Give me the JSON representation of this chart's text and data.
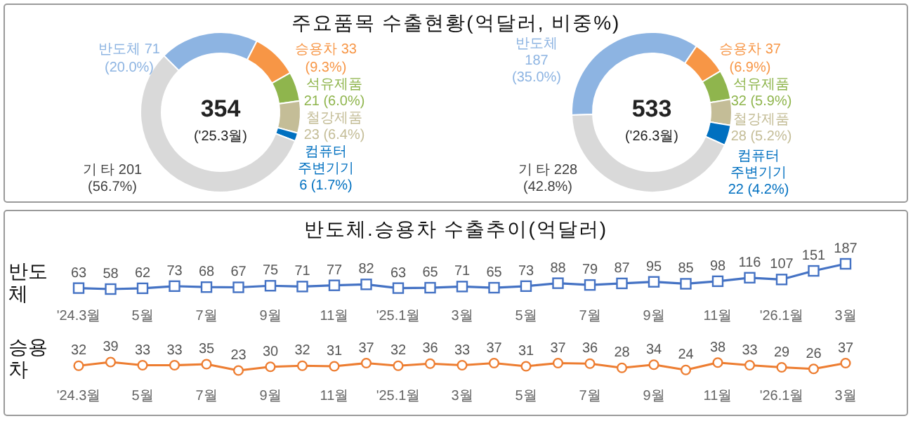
{
  "chart_data": [
    {
      "type": "donut",
      "title": "주요품목 수출현황(억달러, 비중%)",
      "categories": [
        "반도체",
        "승용차",
        "석유제품",
        "철강제품",
        "컴퓨터 주변기기",
        "기 타"
      ],
      "values": [
        71,
        33,
        21,
        23,
        6,
        201
      ],
      "value_labels": [
        "71 (20.0%)",
        "33 (9.3%)",
        "21 (6.0%)",
        "23 (6.4%)",
        "6 (1.7%)",
        "201 (56.7%)"
      ],
      "colors": [
        "#8db4e2",
        "#f79646",
        "#8fb54d",
        "#c4bd97",
        "#0070c0",
        "#d9d9d9"
      ],
      "annotations": [
        "354",
        "('25.3월)"
      ]
    },
    {
      "type": "donut",
      "categories": [
        "반도체",
        "승용차",
        "석유제품",
        "철강제품",
        "컴퓨터 주변기기",
        "기 타"
      ],
      "values": [
        187,
        37,
        32,
        28,
        22,
        228
      ],
      "value_labels": [
        "187 (35.0%)",
        "37 (6.9%)",
        "32 (5.9%)",
        "28 (5.2%)",
        "22 (4.2%)",
        "228 (42.8%)"
      ],
      "colors": [
        "#8db4e2",
        "#f79646",
        "#8fb54d",
        "#c4bd97",
        "#0070c0",
        "#d9d9d9"
      ],
      "annotations": [
        "533",
        "('26.3월)"
      ]
    },
    {
      "type": "line",
      "title": "반도체.승용차 수출추이(억달러)",
      "ylabel": "반도체",
      "marker": "square",
      "data_labels": true,
      "categories": [
        "'24.3월",
        null,
        "5월",
        null,
        "7월",
        null,
        "9월",
        null,
        "11월",
        null,
        "'25.1월",
        null,
        "3월",
        null,
        "5월",
        null,
        "7월",
        null,
        "9월",
        null,
        "11월",
        null,
        "'26.1월",
        null,
        "3월"
      ],
      "series": [
        {
          "color": "#4472c4",
          "values": [
            63,
            58,
            62,
            73,
            68,
            67,
            75,
            71,
            77,
            82,
            63,
            65,
            71,
            65,
            73,
            88,
            79,
            87,
            95,
            85,
            98,
            116,
            107,
            151,
            187
          ]
        }
      ]
    },
    {
      "type": "line",
      "ylabel": "승용차",
      "marker": "circle",
      "data_labels": true,
      "categories": [
        "'24.3월",
        null,
        "5월",
        null,
        "7월",
        null,
        "9월",
        null,
        "11월",
        null,
        "'25.1월",
        null,
        "3월",
        null,
        "5월",
        null,
        "7월",
        null,
        "9월",
        null,
        "11월",
        null,
        "'26.1월",
        null,
        "3월"
      ],
      "series": [
        {
          "color": "#ed7d31",
          "values": [
            32,
            39,
            33,
            33,
            35,
            23,
            30,
            32,
            31,
            37,
            32,
            36,
            33,
            37,
            31,
            37,
            36,
            28,
            34,
            24,
            38,
            33,
            29,
            26,
            37
          ]
        }
      ]
    }
  ]
}
